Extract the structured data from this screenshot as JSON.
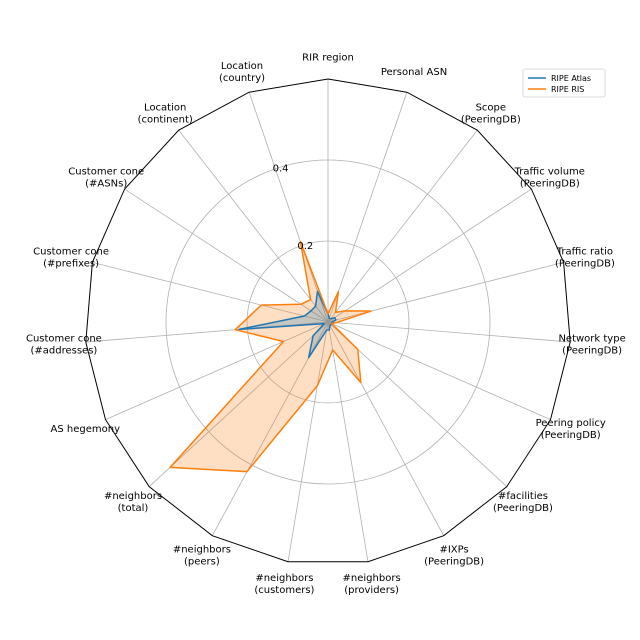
{
  "chart_data": {
    "type": "radar",
    "title": "",
    "categories": [
      "RIR region",
      "Personal ASN",
      "Scope\n(PeeringDB)",
      "Traffic volume\n(PeeringDB)",
      "Traffic ratio\n(PeeringDB)",
      "Network type\n(PeeringDB)",
      "Peering policy\n(PeeringDB)",
      "#facilities\n(PeeringDB)",
      "#IXPs\n(PeeringDB)",
      "#neighbors\n(providers)",
      "#neighbors\n(customers)",
      "#neighbors\n(peers)",
      "#neighbors\n(total)",
      "AS hegemony",
      "Customer cone\n(#addresses)",
      "Customer cone\n(#prefixes)",
      "Customer cone\n(#ASNs)",
      "Location\n(continent)",
      "Location\n(country)"
    ],
    "radial_ticks": [
      0.2,
      0.4
    ],
    "radial_tick_labels": [
      "0.2",
      "0.4"
    ],
    "rlim": [
      0,
      0.6
    ],
    "grid": true,
    "legend_position": "top-right",
    "series": [
      {
        "name": "RIPE Atlas",
        "color": "#1f77b4",
        "values": [
          0.02,
          0.01,
          0.01,
          0.02,
          0.02,
          0.01,
          0.01,
          0.01,
          0.01,
          0.02,
          0.02,
          0.1,
          0.05,
          0.01,
          0.22,
          0.06,
          0.05,
          0.05,
          0.08
        ]
      },
      {
        "name": "RIPE RIS",
        "color": "#ff7f0e",
        "values": [
          0.02,
          0.08,
          0.03,
          0.05,
          0.11,
          0.02,
          0.01,
          0.1,
          0.17,
          0.07,
          0.16,
          0.42,
          0.53,
          0.12,
          0.23,
          0.17,
          0.08,
          0.07,
          0.21
        ]
      }
    ]
  }
}
